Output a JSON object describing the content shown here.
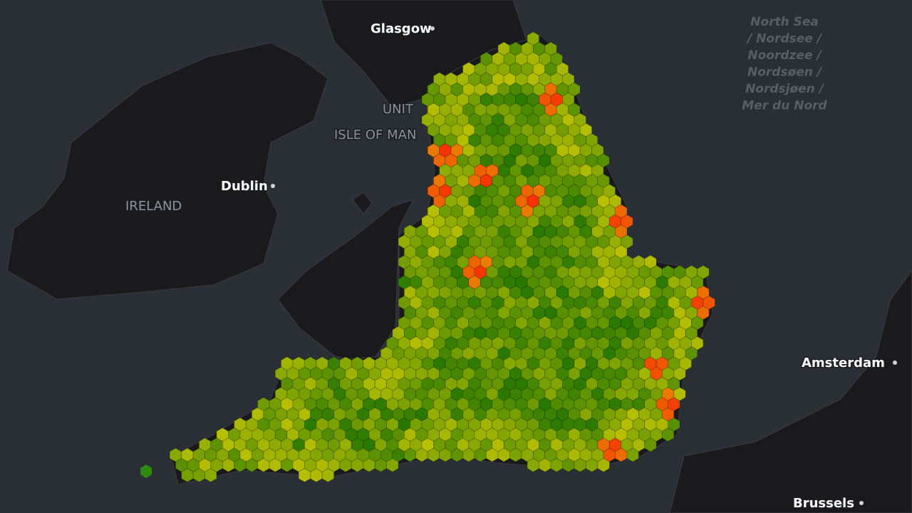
{
  "map": {
    "cities": [
      "Glasgow",
      "Dublin",
      "Amsterdam",
      "Brussels"
    ],
    "regions": [
      "UNIT",
      "ISLE OF MAN",
      "IRELAND"
    ],
    "sea": [
      "North Sea",
      "/ Nordsee /",
      "Noordzee /",
      "Nordsøen /",
      "Nordsjøen /",
      "Mer du Nord"
    ]
  }
}
